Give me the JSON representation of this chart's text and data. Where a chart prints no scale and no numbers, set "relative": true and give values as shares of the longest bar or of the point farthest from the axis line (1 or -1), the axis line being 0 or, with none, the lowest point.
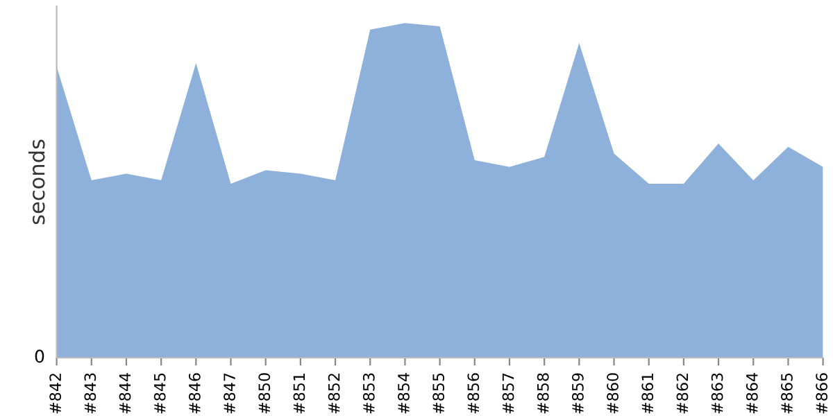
{
  "chart_data": {
    "type": "area",
    "ylabel": "seconds",
    "relative": true,
    "annotations": [
      "0"
    ],
    "color": "#8eb1db",
    "grid": false,
    "legend": false,
    "categories": [
      "#842",
      "#843",
      "#844",
      "#845",
      "#846",
      "#847",
      "#850",
      "#851",
      "#852",
      "#853",
      "#854",
      "#855",
      "#856",
      "#857",
      "#858",
      "#859",
      "#860",
      "#861",
      "#862",
      "#863",
      "#864",
      "#865",
      "#866"
    ],
    "values": [
      0.87,
      0.53,
      0.55,
      0.53,
      0.88,
      0.52,
      0.56,
      0.55,
      0.53,
      0.98,
      1,
      0.99,
      0.59,
      0.57,
      0.6,
      0.94,
      0.61,
      0.52,
      0.52,
      0.64,
      0.53,
      0.63,
      0.57
    ]
  }
}
